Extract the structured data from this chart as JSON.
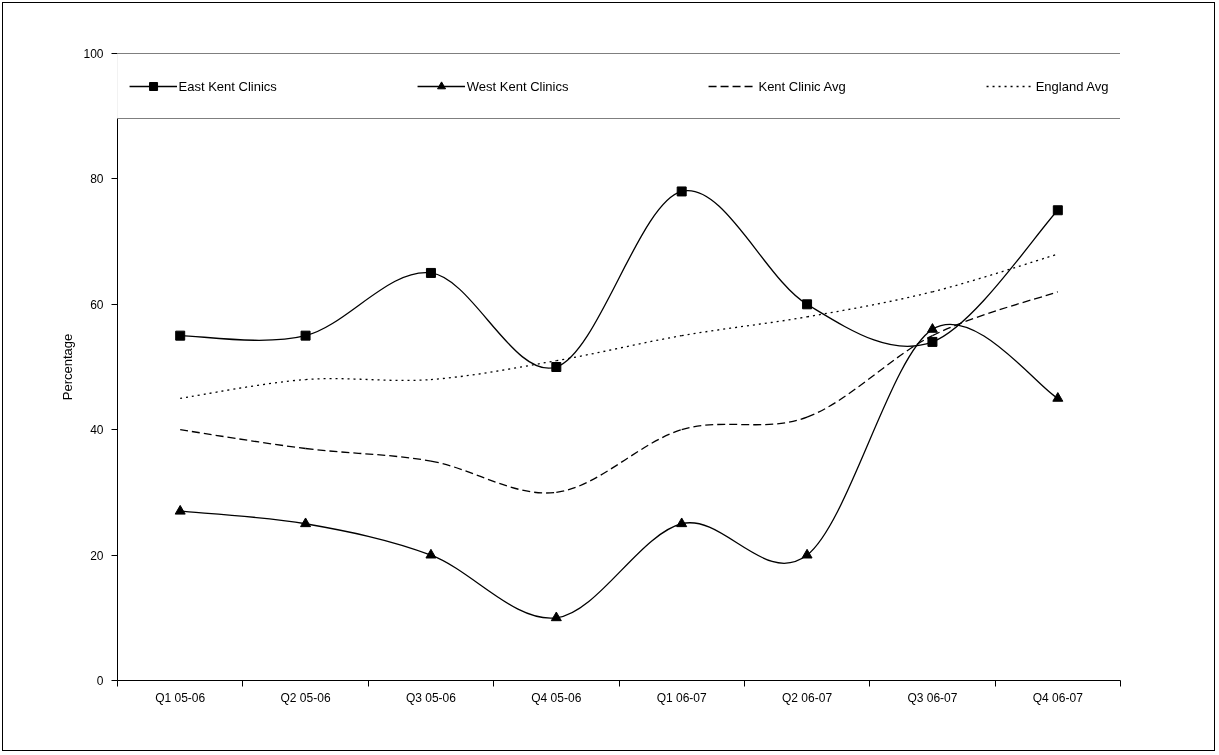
{
  "chart_data": {
    "type": "line",
    "ylabel": "Percentage",
    "legend": "top",
    "categories": [
      "Q1 05-06",
      "Q2 05-06",
      "Q3 05-06",
      "Q4 05-06",
      "Q1 06-07",
      "Q2 06-07",
      "Q3 06-07",
      "Q4 06-07"
    ],
    "ylim": [
      0,
      100
    ],
    "yticks": [
      0,
      20,
      40,
      60,
      80,
      100
    ],
    "series": [
      {
        "name": "East Kent Clinics",
        "color": "#000000",
        "marker": "square",
        "line_style": "solid",
        "values": [
          55,
          55,
          65,
          50,
          78,
          60,
          54,
          75
        ]
      },
      {
        "name": "West Kent Clinics",
        "color": "#000000",
        "marker": "triangle",
        "line_style": "solid",
        "values": [
          27,
          25,
          20,
          10,
          25,
          20,
          56,
          45
        ]
      },
      {
        "name": "Kent Clinic Avg",
        "color": "#000000",
        "marker": "none",
        "line_style": "dashed",
        "values": [
          40,
          37,
          35,
          30,
          40,
          42,
          55,
          62
        ]
      },
      {
        "name": "England Avg",
        "color": "#000000",
        "marker": "none",
        "line_style": "dotted",
        "values": [
          45,
          48,
          48,
          51,
          55,
          58,
          62,
          68
        ]
      }
    ]
  }
}
